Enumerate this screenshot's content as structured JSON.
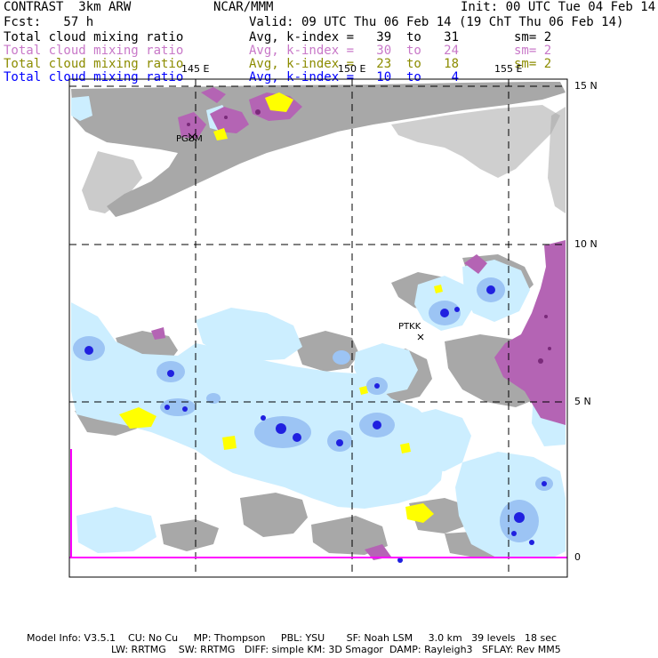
{
  "header": {
    "left_title": "CONTRAST  3km ARW",
    "center_title": "NCAR/MMM",
    "init": "Init: 00 UTC Tue 04 Feb 14",
    "fcst": "Fcst:   57 h",
    "valid": "Valid: 09 UTC Thu 06 Feb 14 (19 ChT Thu 06 Feb 14)"
  },
  "fields": [
    {
      "name": "Total cloud mixing ratio",
      "range": "Avg, k-index =   39  to   31",
      "sm": "sm= 2",
      "color": "#000000"
    },
    {
      "name": "Total cloud mixing ratio",
      "range": "Avg, k-index =   30  to   24",
      "sm": "sm= 2",
      "color": "#c878c8"
    },
    {
      "name": "Total cloud mixing ratio",
      "range": "Avg, k-index =   23  to   18",
      "sm": "sm= 2",
      "color": "#8c8c00"
    },
    {
      "name": "Total cloud mixing ratio",
      "range": "Avg, k-index =   10  to    4",
      "sm": "",
      "color": "#0000ff"
    }
  ],
  "map": {
    "lon_labels": [
      "145 E",
      "150 E",
      "155 E"
    ],
    "lat_labels": [
      "15 N",
      "10 N",
      "5 N",
      "0"
    ],
    "stations": [
      "PGUM",
      "PTKK"
    ],
    "colors": {
      "high_cloud_gray": "#a8a8a8",
      "mid_cloud_purple": "#b464b4",
      "dark_purple": "#7a2a7a",
      "low_cloud_yellow": "#ffff00",
      "shallow_cloud_lightblue": "#cceeff",
      "medium_blue": "#9cc4f4",
      "deep_blue": "#0000ff",
      "equator_line": "#ff00ff"
    }
  },
  "footer": {
    "line1": "Model Info: V3.5.1    CU: No Cu     MP: Thompson     PBL: YSU       SF: Noah LSM     3.0 km   39 levels   18 sec",
    "line2": "LW: RRTMG    SW: RRTMG   DIFF: simple KM: 3D Smagor  DAMP: Rayleigh3   SFLAY: Rev MM5"
  }
}
